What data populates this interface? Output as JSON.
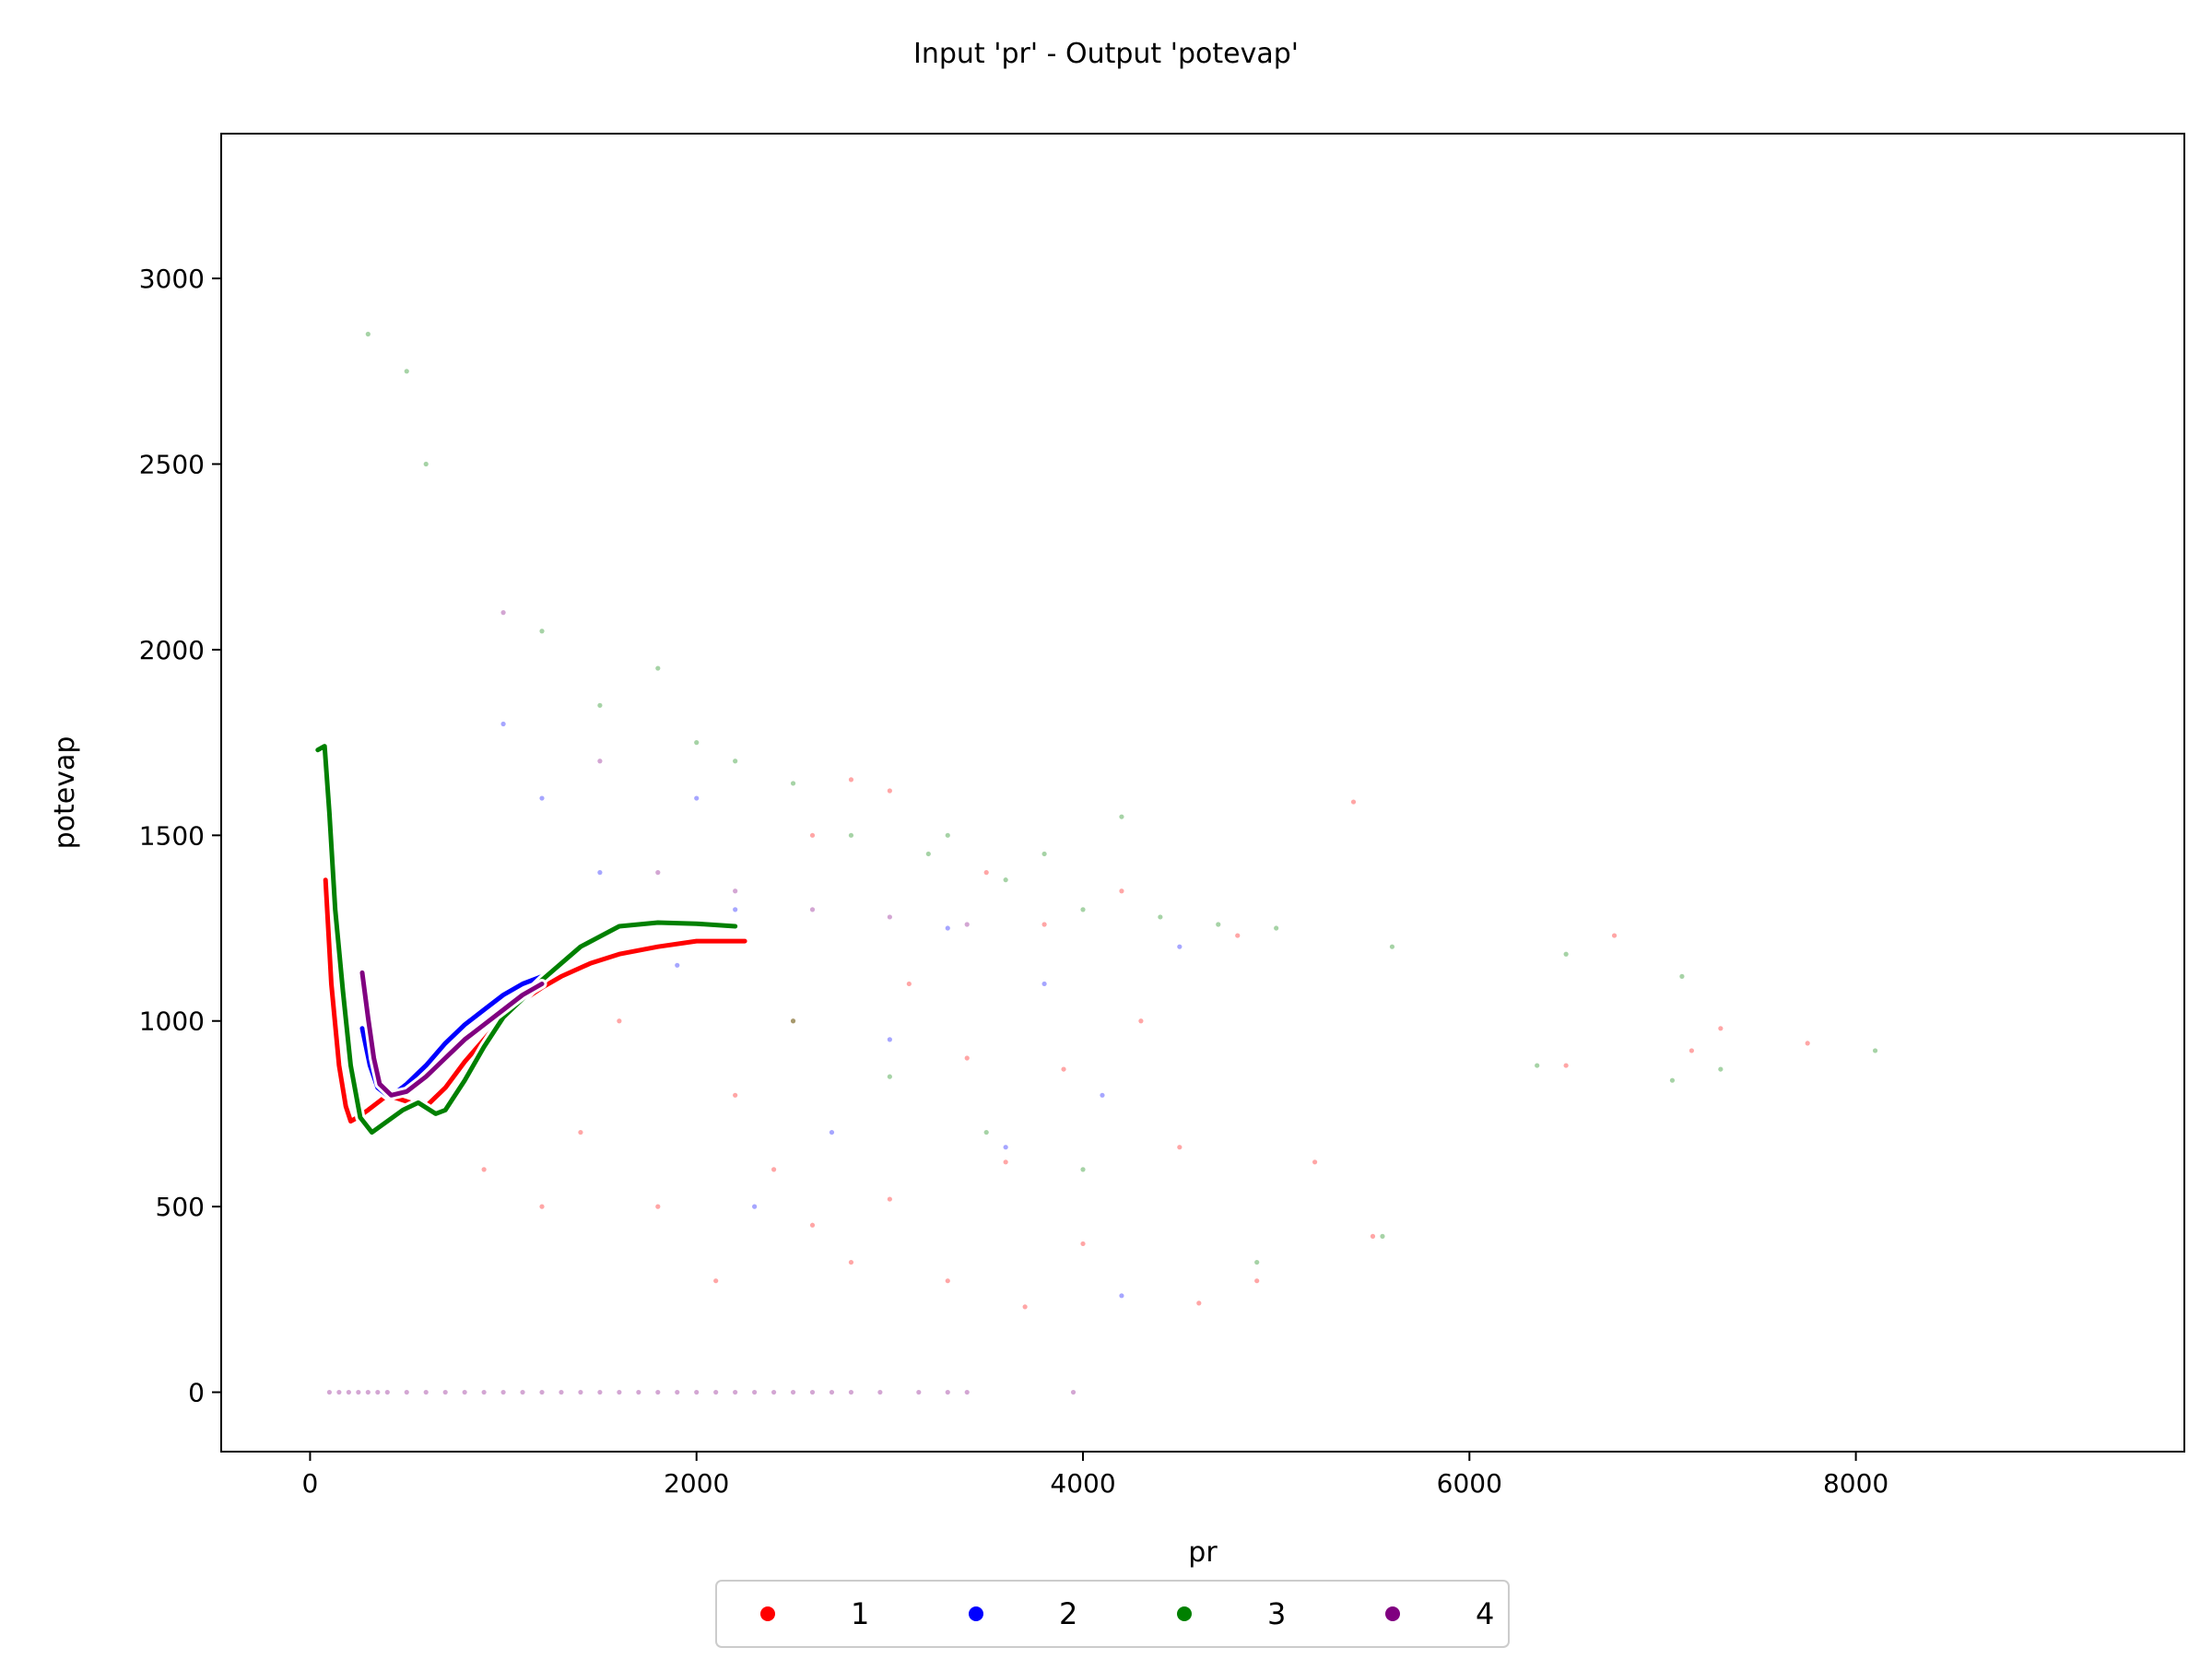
{
  "chart_data": {
    "type": "scatter",
    "title": "Input 'pr' - Output 'potevap'",
    "xlabel": "pr",
    "ylabel": "potevap",
    "xlim": [
      -460,
      9700
    ],
    "ylim": [
      -160,
      3390
    ],
    "xticks": [
      0,
      2000,
      4000,
      6000,
      8000
    ],
    "yticks": [
      0,
      500,
      1000,
      1500,
      2000,
      2500,
      3000
    ],
    "grid": false,
    "legend_position": "bottom-center",
    "series": [
      {
        "name": "1",
        "color": "#ff0000",
        "trend": [
          [
            80,
            1380
          ],
          [
            110,
            1100
          ],
          [
            150,
            880
          ],
          [
            185,
            770
          ],
          [
            210,
            730
          ],
          [
            245,
            740
          ],
          [
            300,
            760
          ],
          [
            400,
            800
          ],
          [
            520,
            780
          ],
          [
            600,
            770
          ],
          [
            700,
            820
          ],
          [
            800,
            890
          ],
          [
            900,
            950
          ],
          [
            1000,
            1010
          ],
          [
            1100,
            1055
          ],
          [
            1200,
            1090
          ],
          [
            1300,
            1120
          ],
          [
            1450,
            1155
          ],
          [
            1600,
            1180
          ],
          [
            1800,
            1200
          ],
          [
            2000,
            1215
          ],
          [
            2250,
            1215
          ]
        ],
        "sample_points": [
          [
            2800,
            1650
          ],
          [
            3000,
            1620
          ],
          [
            2600,
            1500
          ],
          [
            3500,
            1400
          ],
          [
            4200,
            1350
          ],
          [
            3800,
            1260
          ],
          [
            4800,
            1230
          ],
          [
            5400,
            1590
          ],
          [
            6500,
            880
          ],
          [
            6750,
            1230
          ],
          [
            7150,
            920
          ],
          [
            7300,
            980
          ],
          [
            7750,
            940
          ],
          [
            2400,
            600
          ],
          [
            2600,
            450
          ],
          [
            2800,
            350
          ],
          [
            3000,
            520
          ],
          [
            3300,
            300
          ],
          [
            3600,
            620
          ],
          [
            4000,
            400
          ],
          [
            4500,
            660
          ],
          [
            4900,
            300
          ],
          [
            5200,
            620
          ],
          [
            5500,
            420
          ],
          [
            2200,
            800
          ],
          [
            2500,
            1000
          ],
          [
            3100,
            1100
          ],
          [
            3400,
            900
          ],
          [
            1600,
            1000
          ],
          [
            1400,
            700
          ],
          [
            1800,
            500
          ],
          [
            2100,
            300
          ],
          [
            1200,
            500
          ],
          [
            900,
            600
          ],
          [
            3700,
            230
          ],
          [
            4600,
            240
          ],
          [
            3900,
            870
          ],
          [
            4300,
            1000
          ]
        ]
      },
      {
        "name": "2",
        "color": "#0000ff",
        "trend": [
          [
            270,
            980
          ],
          [
            310,
            880
          ],
          [
            350,
            820
          ],
          [
            400,
            800
          ],
          [
            450,
            810
          ],
          [
            500,
            830
          ],
          [
            560,
            860
          ],
          [
            600,
            880
          ],
          [
            700,
            940
          ],
          [
            800,
            990
          ],
          [
            900,
            1030
          ],
          [
            1000,
            1070
          ],
          [
            1100,
            1100
          ],
          [
            1200,
            1120
          ]
        ],
        "sample_points": [
          [
            3800,
            1100
          ],
          [
            4100,
            800
          ],
          [
            4500,
            1200
          ],
          [
            2200,
            1300
          ],
          [
            1900,
            1150
          ],
          [
            3300,
            1250
          ],
          [
            2700,
            700
          ],
          [
            3000,
            950
          ],
          [
            1500,
            1400
          ],
          [
            4200,
            260
          ],
          [
            1200,
            1600
          ],
          [
            1000,
            1800
          ],
          [
            2300,
            500
          ],
          [
            3600,
            660
          ],
          [
            2000,
            1600
          ]
        ]
      },
      {
        "name": "3",
        "color": "#008000",
        "trend": [
          [
            40,
            1730
          ],
          [
            75,
            1740
          ],
          [
            100,
            1560
          ],
          [
            130,
            1300
          ],
          [
            170,
            1080
          ],
          [
            210,
            880
          ],
          [
            260,
            740
          ],
          [
            320,
            700
          ],
          [
            400,
            730
          ],
          [
            480,
            760
          ],
          [
            560,
            780
          ],
          [
            650,
            750
          ],
          [
            700,
            760
          ],
          [
            800,
            840
          ],
          [
            900,
            930
          ],
          [
            1000,
            1010
          ],
          [
            1200,
            1110
          ],
          [
            1400,
            1200
          ],
          [
            1600,
            1255
          ],
          [
            1800,
            1265
          ],
          [
            2000,
            1262
          ],
          [
            2200,
            1255
          ]
        ],
        "sample_points": [
          [
            1800,
            1950
          ],
          [
            2000,
            1750
          ],
          [
            2200,
            1700
          ],
          [
            2500,
            1640
          ],
          [
            2800,
            1500
          ],
          [
            3200,
            1450
          ],
          [
            3600,
            1380
          ],
          [
            4000,
            1300
          ],
          [
            4400,
            1280
          ],
          [
            4700,
            1260
          ],
          [
            5000,
            1250
          ],
          [
            5600,
            1200
          ],
          [
            6500,
            1180
          ],
          [
            7100,
            1120
          ],
          [
            8100,
            920
          ],
          [
            7050,
            840
          ],
          [
            7300,
            870
          ],
          [
            6350,
            880
          ],
          [
            5550,
            420
          ],
          [
            4900,
            350
          ],
          [
            4000,
            600
          ],
          [
            3500,
            700
          ],
          [
            3000,
            850
          ],
          [
            2500,
            1000
          ],
          [
            3300,
            1500
          ],
          [
            3800,
            1450
          ],
          [
            4200,
            1550
          ],
          [
            1200,
            2050
          ],
          [
            600,
            2500
          ],
          [
            500,
            2750
          ],
          [
            300,
            2850
          ],
          [
            1500,
            1850
          ]
        ]
      },
      {
        "name": "4",
        "color": "#800080",
        "trend": [
          [
            270,
            1130
          ],
          [
            300,
            1010
          ],
          [
            330,
            900
          ],
          [
            360,
            830
          ],
          [
            420,
            800
          ],
          [
            500,
            810
          ],
          [
            600,
            850
          ],
          [
            700,
            900
          ],
          [
            800,
            950
          ],
          [
            900,
            990
          ],
          [
            1000,
            1030
          ],
          [
            1100,
            1070
          ],
          [
            1200,
            1100
          ]
        ],
        "sample_points": [
          [
            100,
            0
          ],
          [
            150,
            0
          ],
          [
            200,
            0
          ],
          [
            250,
            0
          ],
          [
            300,
            0
          ],
          [
            350,
            0
          ],
          [
            400,
            0
          ],
          [
            500,
            0
          ],
          [
            600,
            0
          ],
          [
            700,
            0
          ],
          [
            800,
            0
          ],
          [
            900,
            0
          ],
          [
            1000,
            0
          ],
          [
            1100,
            0
          ],
          [
            1200,
            0
          ],
          [
            1300,
            0
          ],
          [
            1400,
            0
          ],
          [
            1500,
            0
          ],
          [
            1600,
            0
          ],
          [
            1700,
            0
          ],
          [
            1800,
            0
          ],
          [
            1900,
            0
          ],
          [
            2000,
            0
          ],
          [
            2100,
            0
          ],
          [
            2200,
            0
          ],
          [
            2300,
            0
          ],
          [
            2400,
            0
          ],
          [
            2500,
            0
          ],
          [
            2600,
            0
          ],
          [
            2700,
            0
          ],
          [
            2800,
            0
          ],
          [
            2950,
            0
          ],
          [
            3150,
            0
          ],
          [
            3300,
            0
          ],
          [
            3400,
            0
          ],
          [
            3950,
            0
          ],
          [
            1500,
            1700
          ],
          [
            1800,
            1400
          ],
          [
            2200,
            1350
          ],
          [
            2600,
            1300
          ],
          [
            3000,
            1280
          ],
          [
            3400,
            1260
          ],
          [
            1000,
            2100
          ]
        ]
      }
    ]
  }
}
